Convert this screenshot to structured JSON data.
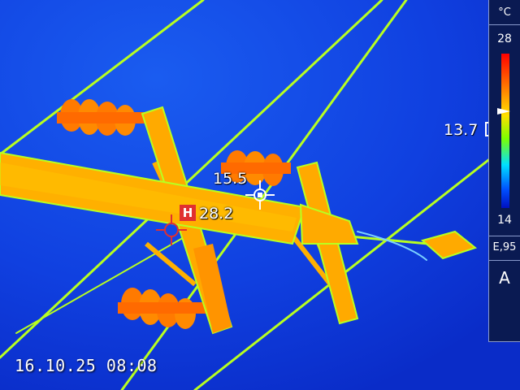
{
  "thermal_image": {
    "spot_reading": "15.5",
    "hot_spot_badge": "H",
    "hot_spot_reading": "28.2",
    "timestamp": "16.10.25 08:08"
  },
  "scale": {
    "unit": "°C",
    "max": "28",
    "min": "14",
    "center_reading": "13.7",
    "emissivity": "E,95",
    "mode": "A"
  },
  "colors": {
    "background": "#1040e0",
    "hot": "#ffb000",
    "warm": "#ff7000",
    "edge": "#b8ff20",
    "hot_badge": "#e03030"
  },
  "icons": {
    "spot_marker": "crosshair-icon",
    "hot_marker": "crosshair-icon"
  }
}
